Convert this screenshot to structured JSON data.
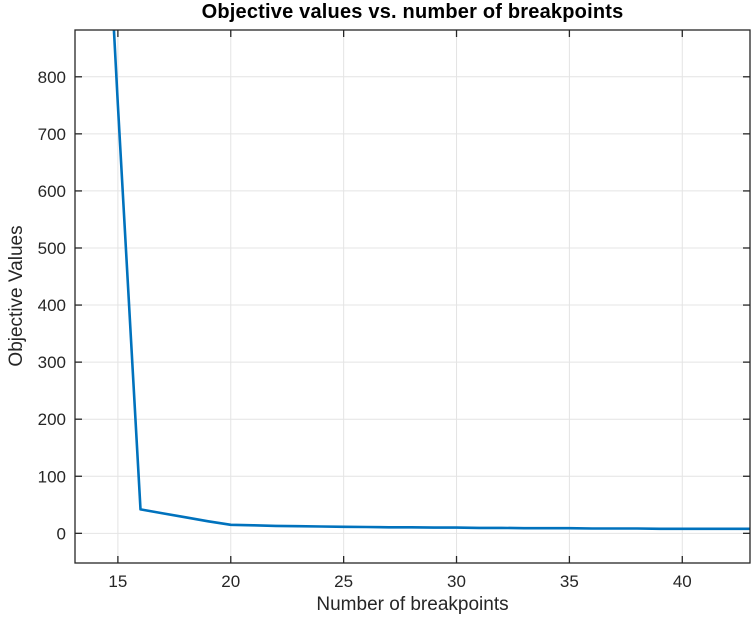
{
  "chart_data": {
    "type": "line",
    "title": "Objective values vs. number of breakpoints",
    "xlabel": "Number of breakpoints",
    "ylabel": "Objective Values",
    "x": [
      14,
      15,
      16,
      17,
      18,
      19,
      20,
      21,
      22,
      23,
      24,
      25,
      26,
      27,
      28,
      29,
      30,
      31,
      32,
      33,
      34,
      35,
      36,
      37,
      38,
      39,
      40,
      41,
      42,
      43
    ],
    "y": [
      1500,
      750,
      42,
      35,
      28,
      21,
      15,
      14,
      13,
      12.5,
      12,
      11.5,
      11,
      10.5,
      10.5,
      10,
      10,
      9.5,
      9.5,
      9,
      9,
      9,
      8.5,
      8.5,
      8.5,
      8,
      8,
      8,
      8,
      8
    ],
    "xlim": [
      13.1,
      43.0
    ],
    "ylim": [
      -52,
      882
    ],
    "xticks": [
      15,
      20,
      25,
      30,
      35,
      40
    ],
    "yticks": [
      0,
      100,
      200,
      300,
      400,
      500,
      600,
      700,
      800
    ],
    "grid": true,
    "legend": null,
    "line_color": "#0072BD",
    "line_width": 2.6,
    "grid_color": "#e4e4e4",
    "axis_color": "#262626",
    "tick_length": 7,
    "background": "#ffffff"
  }
}
